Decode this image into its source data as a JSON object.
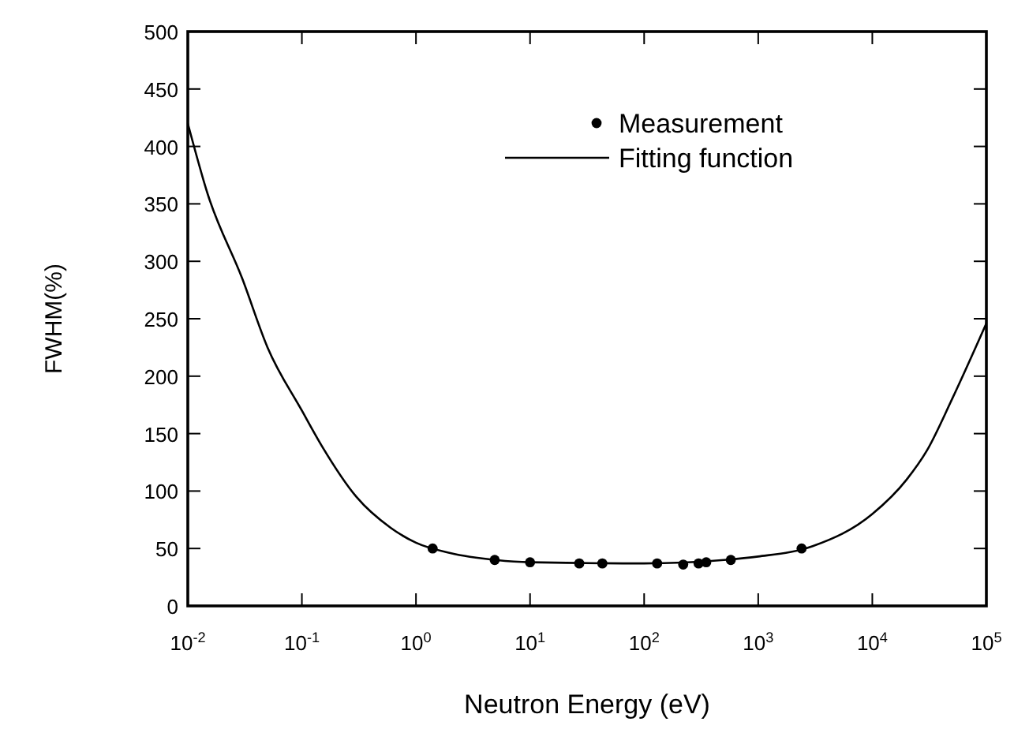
{
  "chart_data": {
    "type": "scatter",
    "xlabel": "Neutron Energy (eV)",
    "ylabel": "FWHM(%)",
    "log": "x",
    "xlim": [
      0.01,
      100000
    ],
    "ylim": [
      0,
      500
    ],
    "xticks": [
      {
        "value": 0.01,
        "label": "10$^{-2}$"
      },
      {
        "value": 0.1,
        "label": "10$^{-1}$"
      },
      {
        "value": 1,
        "label": "10$^{0}$"
      },
      {
        "value": 10,
        "label": "10$^{1}$"
      },
      {
        "value": 100,
        "label": "10$^{2}$"
      },
      {
        "value": 1000,
        "label": "10$^{3}$"
      },
      {
        "value": 10000,
        "label": "10$^{4}$"
      },
      {
        "value": 100000,
        "label": "10$^{5}$"
      }
    ],
    "yticks": [
      0,
      50,
      100,
      150,
      200,
      250,
      300,
      350,
      400,
      450,
      500
    ],
    "legend": "top right",
    "grid": false,
    "series": [
      {
        "name": "Measurement",
        "marker": "circle",
        "color": "#000000",
        "x": [
          1.4,
          4.9,
          10,
          27,
          43,
          130,
          220,
          300,
          350,
          575,
          2400
        ],
        "values": [
          50,
          40,
          38,
          37,
          37,
          37,
          36,
          37,
          38,
          40,
          50
        ]
      },
      {
        "name": "Fitting function",
        "type": "line",
        "marker": "none",
        "line_style": "solid",
        "color": "#000000",
        "x": [
          0.01,
          0.015,
          0.03,
          0.05,
          0.1,
          0.15,
          0.3,
          0.6,
          1,
          2,
          5,
          10,
          100,
          500,
          1000,
          3000,
          10000,
          20000,
          30000,
          50000,
          100000
        ],
        "values": [
          420,
          358,
          285,
          225,
          170,
          139,
          95,
          68,
          55,
          46,
          40,
          38,
          37,
          40,
          43,
          52,
          80,
          110,
          135,
          180,
          246
        ]
      }
    ]
  }
}
